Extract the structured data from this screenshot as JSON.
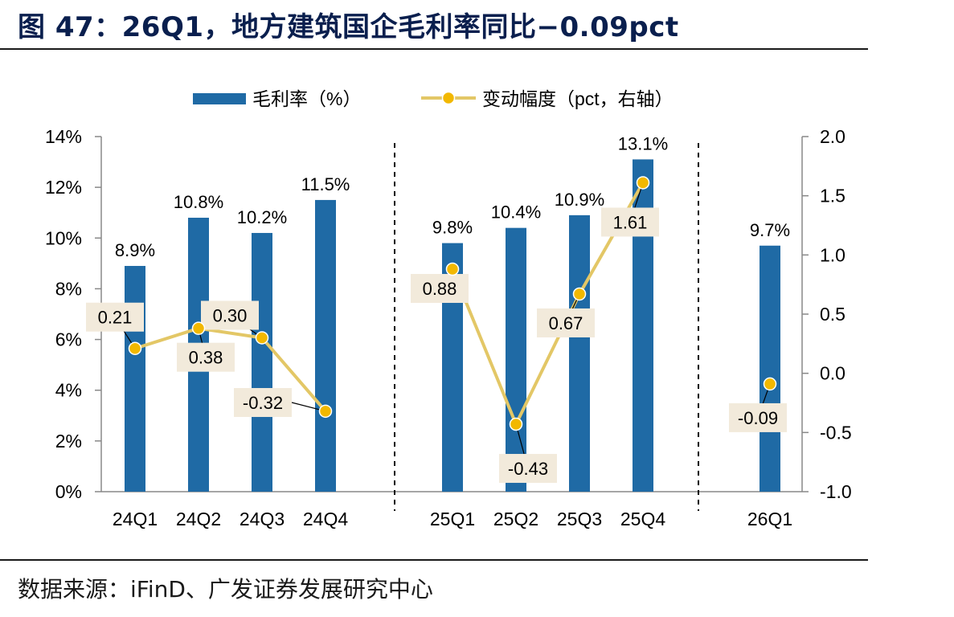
{
  "title": "图 47：26Q1，地方建筑国企毛利率同比−0.09pct",
  "source": "数据来源：iFinD、广发证券发展研究中心",
  "colors": {
    "bar": "#1f6aa5",
    "line": "#e3c766",
    "marker": "#f2b800",
    "label_bg": "#f2eadb",
    "title": "#0a1f4e"
  },
  "chart_data": {
    "type": "bar+line",
    "categories": [
      "24Q1",
      "24Q2",
      "24Q3",
      "24Q4",
      "25Q1",
      "25Q2",
      "25Q3",
      "25Q4",
      "26Q1"
    ],
    "groups": [
      [
        "24Q1",
        "24Q2",
        "24Q3",
        "24Q4"
      ],
      [
        "25Q1",
        "25Q2",
        "25Q3",
        "25Q4"
      ],
      [
        "26Q1"
      ]
    ],
    "series": [
      {
        "name": "毛利率（%）",
        "type": "bar",
        "axis": "left",
        "values": [
          8.9,
          10.8,
          10.2,
          11.5,
          9.8,
          10.4,
          10.9,
          13.1,
          9.7
        ],
        "labels": [
          "8.9%",
          "10.8%",
          "10.2%",
          "11.5%",
          "9.8%",
          "10.4%",
          "10.9%",
          "13.1%",
          "9.7%"
        ]
      },
      {
        "name": "变动幅度（pct，右轴）",
        "type": "line",
        "axis": "right",
        "values": [
          0.21,
          0.38,
          0.3,
          -0.32,
          0.88,
          -0.43,
          0.67,
          1.61,
          -0.09
        ],
        "labels": [
          "0.21",
          "0.38",
          "0.30",
          "-0.32",
          "0.88",
          "-0.43",
          "0.67",
          "1.61",
          "-0.09"
        ]
      }
    ],
    "left_axis": {
      "min": 0,
      "max": 14,
      "ticks": [
        0,
        2,
        4,
        6,
        8,
        10,
        12,
        14
      ],
      "tick_labels": [
        "0%",
        "2%",
        "4%",
        "6%",
        "8%",
        "10%",
        "12%",
        "14%"
      ]
    },
    "right_axis": {
      "min": -1.0,
      "max": 2.0,
      "ticks": [
        -1.0,
        -0.5,
        0.0,
        0.5,
        1.0,
        1.5,
        2.0
      ],
      "tick_labels": [
        "-1.0",
        "-0.5",
        "0.0",
        "0.5",
        "1.0",
        "1.5",
        "2.0"
      ]
    },
    "legend_position": "top-center",
    "grid": false,
    "group_separators": "dashed"
  }
}
